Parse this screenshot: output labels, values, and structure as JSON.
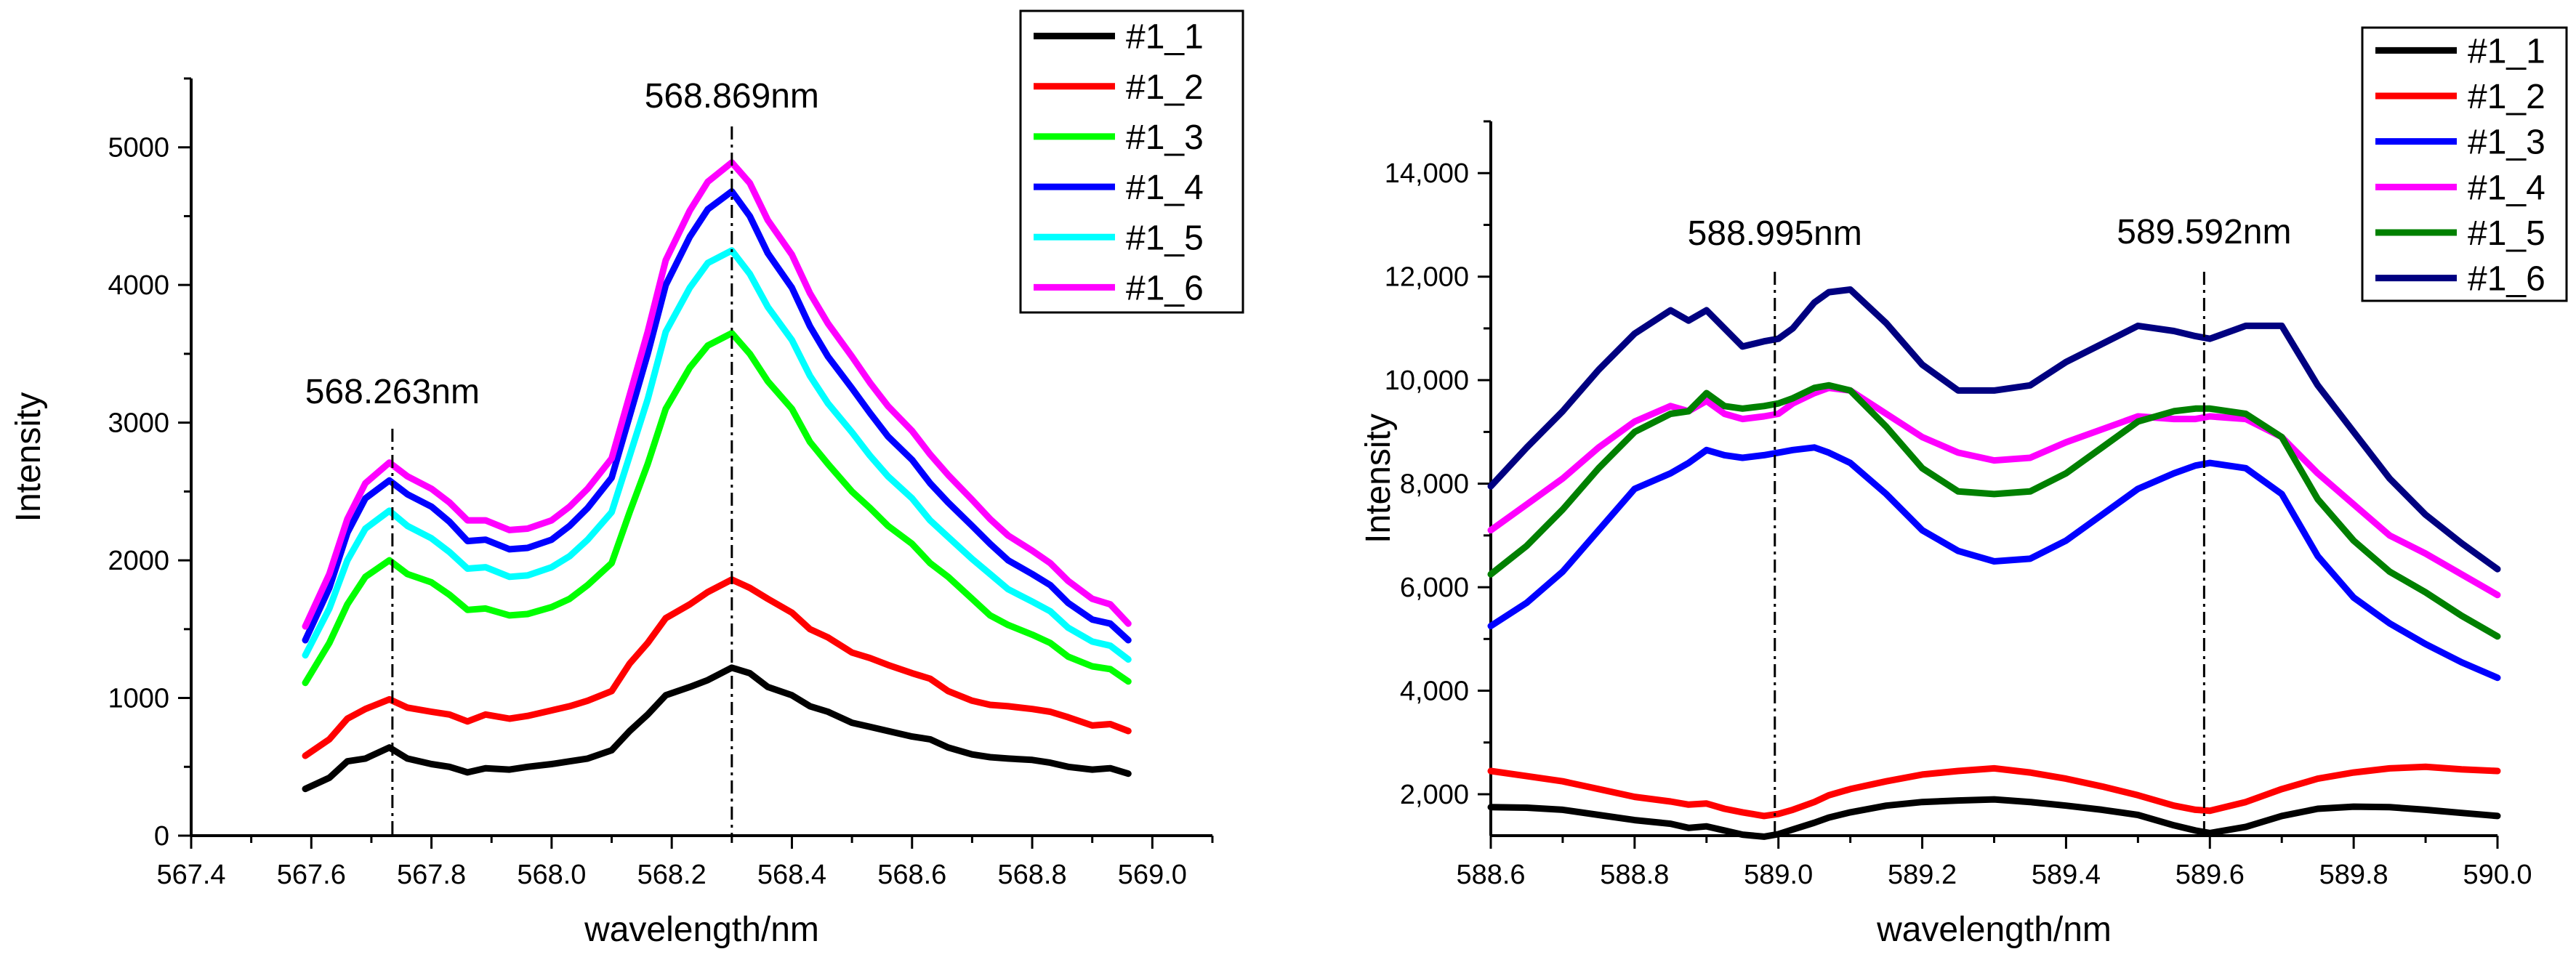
{
  "chart_data": [
    {
      "type": "line",
      "xlabel": "wavelength/nm",
      "ylabel": "Intensity",
      "xlim": [
        567.4,
        569.1
      ],
      "ylim": [
        0,
        5500
      ],
      "x_ticks": [
        567.4,
        567.6,
        567.8,
        568.0,
        568.2,
        568.4,
        568.6,
        568.8,
        569.0
      ],
      "x_tick_labels": [
        "567.4",
        "567.6",
        "567.8",
        "568.0",
        "568.2",
        "568.4",
        "568.6",
        "568.8",
        "569.0"
      ],
      "y_ticks": [
        0,
        1000,
        2000,
        3000,
        4000,
        5000
      ],
      "y_tick_labels": [
        "0",
        "1000",
        "2000",
        "3000",
        "4000",
        "5000"
      ],
      "legend_position": "top-right",
      "annotations": [
        {
          "x": 567.735,
          "label": "568.263nm"
        },
        {
          "x": 568.3,
          "label": "568.869nm"
        }
      ],
      "x": [
        567.59,
        567.63,
        567.66,
        567.69,
        567.73,
        567.76,
        567.8,
        567.83,
        567.86,
        567.89,
        567.93,
        567.96,
        568.0,
        568.03,
        568.06,
        568.1,
        568.13,
        568.16,
        568.19,
        568.23,
        568.26,
        568.3,
        568.33,
        568.36,
        568.4,
        568.43,
        568.46,
        568.5,
        568.53,
        568.56,
        568.6,
        568.63,
        568.66,
        568.7,
        568.73,
        568.76,
        568.8,
        568.83,
        568.86,
        568.9,
        568.93,
        568.96
      ],
      "series": [
        {
          "name": "#1_1",
          "color": "#000000",
          "values": [
            340,
            420,
            540,
            560,
            640,
            560,
            520,
            500,
            460,
            490,
            480,
            500,
            520,
            540,
            560,
            620,
            760,
            880,
            1020,
            1080,
            1130,
            1220,
            1180,
            1080,
            1020,
            940,
            900,
            820,
            790,
            760,
            720,
            700,
            640,
            590,
            570,
            560,
            550,
            530,
            500,
            480,
            490,
            450
          ]
        },
        {
          "name": "#1_2",
          "color": "#ff0000",
          "values": [
            580,
            700,
            850,
            920,
            990,
            930,
            900,
            880,
            830,
            880,
            850,
            870,
            910,
            940,
            980,
            1050,
            1250,
            1400,
            1580,
            1680,
            1770,
            1860,
            1800,
            1720,
            1620,
            1500,
            1440,
            1330,
            1290,
            1240,
            1180,
            1140,
            1050,
            980,
            950,
            940,
            920,
            900,
            860,
            800,
            810,
            760
          ]
        },
        {
          "name": "#1_3",
          "color": "#00ff00",
          "values": [
            1110,
            1400,
            1680,
            1880,
            2000,
            1900,
            1840,
            1750,
            1640,
            1650,
            1600,
            1610,
            1660,
            1720,
            1820,
            1980,
            2350,
            2700,
            3100,
            3400,
            3560,
            3650,
            3500,
            3300,
            3100,
            2860,
            2700,
            2500,
            2380,
            2250,
            2120,
            1980,
            1880,
            1720,
            1600,
            1530,
            1460,
            1400,
            1300,
            1230,
            1210,
            1120
          ]
        },
        {
          "name": "#1_4",
          "color": "#0000ff",
          "values": [
            1420,
            1800,
            2200,
            2450,
            2580,
            2480,
            2390,
            2280,
            2140,
            2150,
            2080,
            2090,
            2150,
            2250,
            2380,
            2600,
            3050,
            3500,
            4000,
            4350,
            4550,
            4680,
            4500,
            4230,
            3980,
            3700,
            3480,
            3250,
            3070,
            2900,
            2730,
            2560,
            2420,
            2250,
            2120,
            2000,
            1900,
            1820,
            1690,
            1570,
            1540,
            1420
          ]
        },
        {
          "name": "#1_5",
          "color": "#00ffff",
          "values": [
            1310,
            1650,
            2000,
            2230,
            2360,
            2250,
            2160,
            2060,
            1940,
            1950,
            1880,
            1890,
            1950,
            2030,
            2150,
            2350,
            2760,
            3170,
            3660,
            3980,
            4160,
            4250,
            4080,
            3840,
            3600,
            3340,
            3140,
            2930,
            2760,
            2610,
            2450,
            2290,
            2170,
            2010,
            1900,
            1790,
            1700,
            1630,
            1510,
            1410,
            1380,
            1280
          ]
        },
        {
          "name": "#1_6",
          "color": "#ff00ff",
          "values": [
            1520,
            1900,
            2300,
            2560,
            2710,
            2610,
            2520,
            2420,
            2290,
            2290,
            2220,
            2230,
            2290,
            2390,
            2520,
            2740,
            3200,
            3660,
            4180,
            4540,
            4750,
            4890,
            4740,
            4470,
            4220,
            3940,
            3720,
            3480,
            3290,
            3120,
            2940,
            2770,
            2620,
            2440,
            2300,
            2180,
            2070,
            1980,
            1850,
            1720,
            1680,
            1540
          ]
        }
      ]
    },
    {
      "type": "line",
      "xlabel": "wavelength/nm",
      "ylabel": "Intensity",
      "xlim": [
        588.6,
        590.0
      ],
      "ylim": [
        1200,
        15000
      ],
      "x_ticks": [
        588.6,
        588.8,
        589.0,
        589.2,
        589.4,
        589.6,
        589.8,
        590.0
      ],
      "x_tick_labels": [
        "588.6",
        "588.8",
        "589.0",
        "589.2",
        "589.4",
        "589.6",
        "589.8",
        "590.0"
      ],
      "y_ticks": [
        2000,
        4000,
        6000,
        8000,
        10000,
        12000,
        14000
      ],
      "y_tick_labels": [
        "2,000",
        "4,000",
        "6,000",
        "8,000",
        "10,000",
        "12,000",
        "14,000"
      ],
      "legend_position": "top-right",
      "annotations": [
        {
          "x": 588.995,
          "label": "588.995nm"
        },
        {
          "x": 589.592,
          "label": "589.592nm"
        }
      ],
      "x": [
        588.6,
        588.65,
        588.7,
        588.75,
        588.8,
        588.85,
        588.875,
        588.9,
        588.925,
        588.95,
        588.98,
        589.0,
        589.02,
        589.05,
        589.07,
        589.1,
        589.15,
        589.2,
        589.25,
        589.3,
        589.35,
        589.4,
        589.45,
        589.5,
        589.55,
        589.58,
        589.6,
        589.65,
        589.7,
        589.75,
        589.8,
        589.85,
        589.9,
        589.95,
        590.0
      ],
      "series": [
        {
          "name": "#1_1",
          "color": "#000000",
          "values": [
            1750,
            1740,
            1700,
            1600,
            1500,
            1430,
            1350,
            1380,
            1300,
            1220,
            1180,
            1230,
            1320,
            1450,
            1550,
            1650,
            1780,
            1850,
            1880,
            1900,
            1850,
            1780,
            1700,
            1600,
            1400,
            1300,
            1250,
            1370,
            1580,
            1720,
            1760,
            1750,
            1700,
            1640,
            1580
          ]
        },
        {
          "name": "#1_2",
          "color": "#ff0000",
          "values": [
            2450,
            2350,
            2250,
            2100,
            1950,
            1860,
            1800,
            1820,
            1720,
            1650,
            1580,
            1620,
            1700,
            1850,
            1980,
            2100,
            2250,
            2380,
            2450,
            2500,
            2420,
            2300,
            2150,
            1980,
            1780,
            1700,
            1680,
            1850,
            2100,
            2300,
            2420,
            2500,
            2530,
            2480,
            2450
          ]
        },
        {
          "name": "#1_3",
          "color": "#0000ff",
          "values": [
            5250,
            5700,
            6300,
            7100,
            7900,
            8200,
            8400,
            8650,
            8550,
            8500,
            8550,
            8600,
            8650,
            8700,
            8600,
            8400,
            7800,
            7100,
            6700,
            6500,
            6550,
            6900,
            7400,
            7900,
            8200,
            8350,
            8400,
            8300,
            7800,
            6600,
            5800,
            5300,
            4900,
            4550,
            4250
          ]
        },
        {
          "name": "#1_4",
          "color": "#ff00ff",
          "values": [
            7100,
            7600,
            8100,
            8700,
            9200,
            9500,
            9400,
            9600,
            9350,
            9250,
            9300,
            9350,
            9550,
            9750,
            9850,
            9800,
            9350,
            8900,
            8600,
            8450,
            8500,
            8800,
            9050,
            9300,
            9250,
            9250,
            9300,
            9250,
            8900,
            8200,
            7600,
            7000,
            6650,
            6250,
            5850
          ]
        },
        {
          "name": "#1_5",
          "color": "#008000",
          "values": [
            6250,
            6800,
            7500,
            8300,
            9000,
            9350,
            9400,
            9750,
            9500,
            9450,
            9500,
            9550,
            9650,
            9850,
            9900,
            9800,
            9100,
            8300,
            7850,
            7800,
            7850,
            8200,
            8700,
            9200,
            9400,
            9450,
            9450,
            9350,
            8900,
            7700,
            6900,
            6300,
            5900,
            5450,
            5050
          ]
        },
        {
          "name": "#1_6",
          "color": "#000080",
          "values": [
            7950,
            8700,
            9400,
            10200,
            10900,
            11350,
            11150,
            11350,
            11000,
            10650,
            10750,
            10800,
            11000,
            11500,
            11700,
            11750,
            11100,
            10300,
            9800,
            9800,
            9900,
            10350,
            10700,
            11050,
            10950,
            10850,
            10800,
            11050,
            11050,
            9900,
            9000,
            8100,
            7400,
            6850,
            6350
          ]
        }
      ]
    }
  ]
}
